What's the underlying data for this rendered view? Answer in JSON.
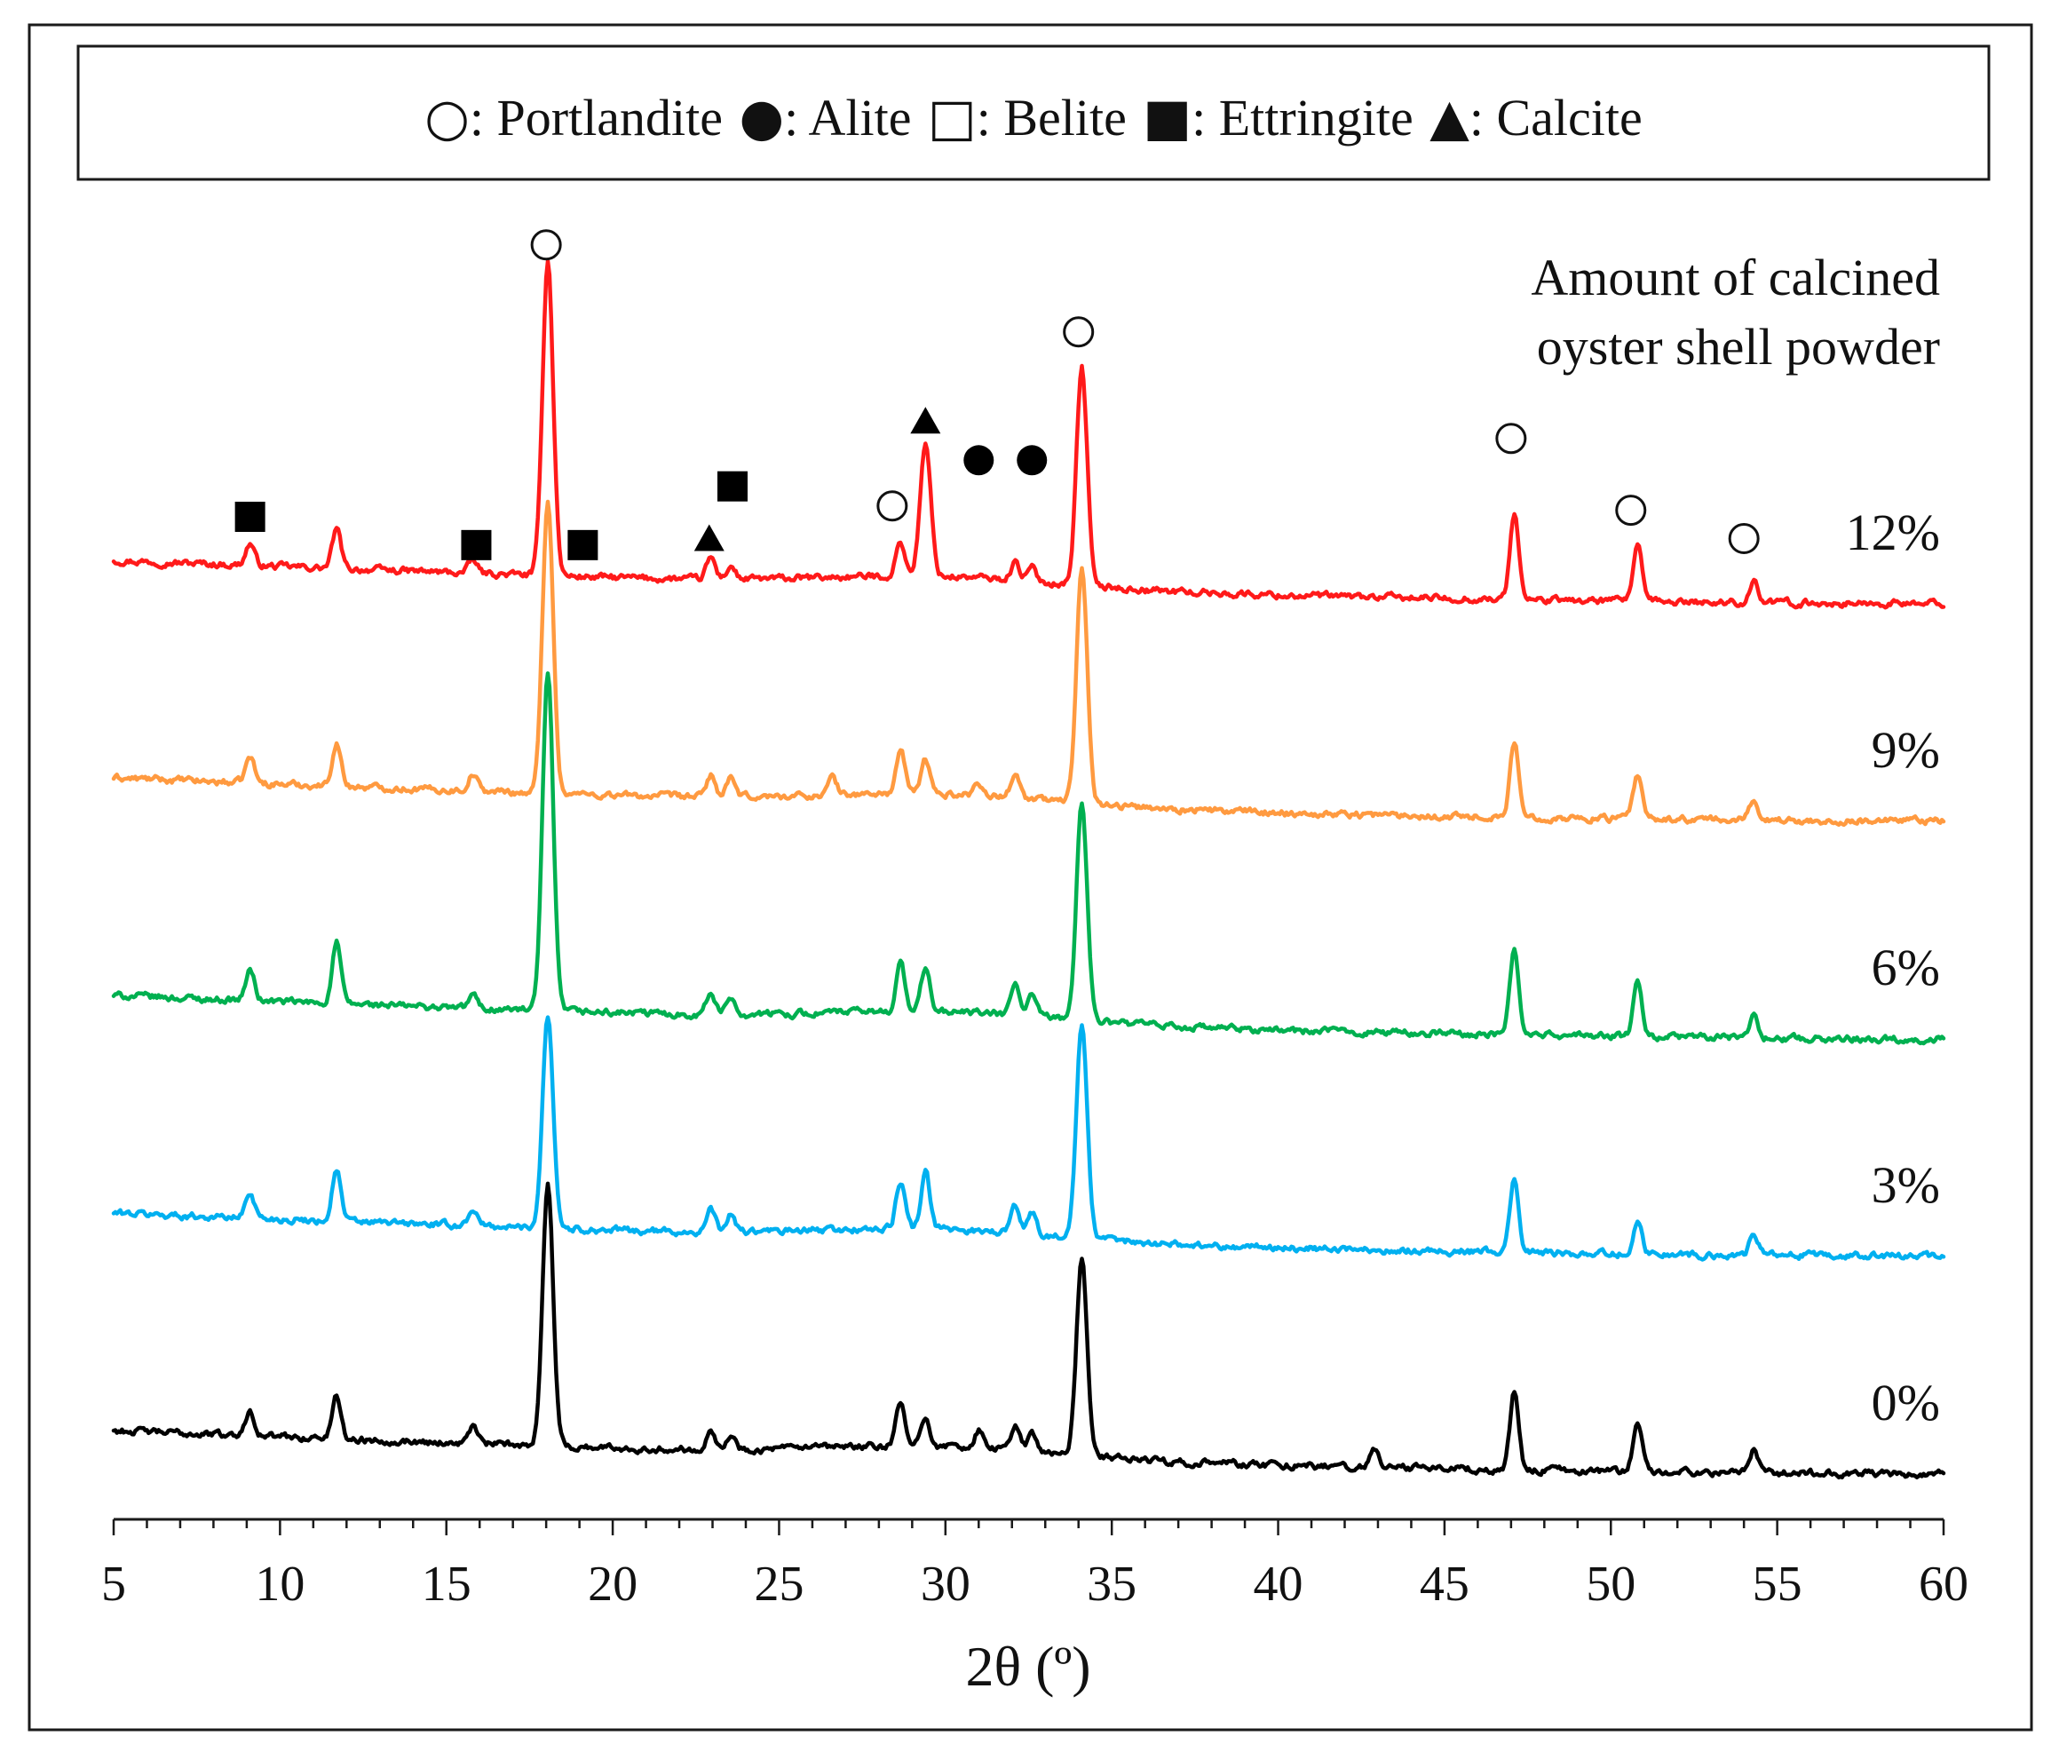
{
  "chart_data": {
    "type": "line",
    "title": "",
    "xlabel": "2θ (º)",
    "ylabel": "",
    "xlim": [
      5,
      60
    ],
    "x_ticks": [
      "5",
      "10",
      "15",
      "20",
      "25",
      "30",
      "35",
      "40",
      "45",
      "50",
      "55",
      "60"
    ],
    "grid": false,
    "legend": {
      "placement": "top",
      "entries": [
        {
          "symbol": "open-circle",
          "text": ": Portlandite"
        },
        {
          "symbol": "filled-circle",
          "text": ": Alite"
        },
        {
          "symbol": "open-square",
          "text": ": Belite"
        },
        {
          "symbol": "filled-square",
          "text": ": Ettringite"
        },
        {
          "symbol": "filled-triangle",
          "text": ": Calcite"
        }
      ]
    },
    "series_title_lines": [
      "Amount of calcined",
      "oyster shell powder"
    ],
    "series": [
      {
        "name": "12%",
        "color": "#ff1a1a",
        "offset": 4,
        "baseline_start": 0.2,
        "baseline_end": 0.0,
        "peaks": [
          [
            9.1,
            0.1
          ],
          [
            11.7,
            0.18
          ],
          [
            15.8,
            0.06
          ],
          [
            18.05,
            1.45
          ],
          [
            22.95,
            0.1
          ],
          [
            23.55,
            0.06
          ],
          [
            28.65,
            0.16
          ],
          [
            29.4,
            0.6
          ],
          [
            32.1,
            0.08
          ],
          [
            32.6,
            0.06
          ],
          [
            34.1,
            1.0
          ],
          [
            47.1,
            0.4
          ],
          [
            50.8,
            0.26
          ],
          [
            54.3,
            0.1
          ]
        ]
      },
      {
        "name": "9%",
        "color": "#ff9a40",
        "offset": 3,
        "baseline_start": 0.2,
        "baseline_end": 0.0,
        "peaks": [
          [
            9.1,
            0.12
          ],
          [
            11.7,
            0.2
          ],
          [
            15.8,
            0.08
          ],
          [
            18.05,
            1.35
          ],
          [
            22.95,
            0.1
          ],
          [
            23.55,
            0.08
          ],
          [
            26.6,
            0.08
          ],
          [
            28.65,
            0.2
          ],
          [
            29.4,
            0.16
          ],
          [
            31.0,
            0.06
          ],
          [
            32.1,
            0.12
          ],
          [
            34.1,
            1.1
          ],
          [
            47.1,
            0.34
          ],
          [
            50.8,
            0.2
          ],
          [
            54.3,
            0.1
          ]
        ]
      },
      {
        "name": "6%",
        "color": "#00b050",
        "offset": 2,
        "baseline_start": 0.2,
        "baseline_end": 0.0,
        "peaks": [
          [
            9.1,
            0.14
          ],
          [
            11.7,
            0.28
          ],
          [
            15.8,
            0.06
          ],
          [
            18.05,
            1.55
          ],
          [
            22.95,
            0.1
          ],
          [
            23.55,
            0.08
          ],
          [
            28.65,
            0.22
          ],
          [
            29.4,
            0.2
          ],
          [
            32.1,
            0.14
          ],
          [
            32.6,
            0.1
          ],
          [
            34.1,
            1.0
          ],
          [
            47.1,
            0.4
          ],
          [
            50.8,
            0.24
          ],
          [
            54.3,
            0.1
          ]
        ]
      },
      {
        "name": "3%",
        "color": "#00b0f0",
        "offset": 1,
        "baseline_start": 0.2,
        "baseline_end": 0.0,
        "peaks": [
          [
            9.1,
            0.12
          ],
          [
            11.7,
            0.24
          ],
          [
            15.8,
            0.08
          ],
          [
            18.05,
            0.98
          ],
          [
            22.95,
            0.1
          ],
          [
            23.55,
            0.08
          ],
          [
            28.65,
            0.22
          ],
          [
            29.4,
            0.26
          ],
          [
            32.1,
            0.12
          ],
          [
            32.6,
            0.1
          ],
          [
            34.1,
            0.98
          ],
          [
            47.1,
            0.34
          ],
          [
            50.8,
            0.16
          ],
          [
            54.3,
            0.1
          ]
        ]
      },
      {
        "name": "0%",
        "color": "#000000",
        "offset": 0,
        "baseline_start": 0.2,
        "baseline_end": 0.0,
        "peaks": [
          [
            9.1,
            0.12
          ],
          [
            11.7,
            0.2
          ],
          [
            15.8,
            0.08
          ],
          [
            18.05,
            1.2
          ],
          [
            22.95,
            0.1
          ],
          [
            23.55,
            0.06
          ],
          [
            28.65,
            0.2
          ],
          [
            29.4,
            0.14
          ],
          [
            31.0,
            0.08
          ],
          [
            32.1,
            0.12
          ],
          [
            32.6,
            0.08
          ],
          [
            34.1,
            0.9
          ],
          [
            42.9,
            0.08
          ],
          [
            47.1,
            0.36
          ],
          [
            50.8,
            0.24
          ],
          [
            54.3,
            0.1
          ]
        ]
      }
    ],
    "annotations": [
      {
        "symbol": "open-circle",
        "x": 18.0,
        "y": 5.65
      },
      {
        "symbol": "open-circle",
        "x": 34.0,
        "y": 5.25
      },
      {
        "symbol": "open-circle",
        "x": 28.4,
        "y": 4.45
      },
      {
        "symbol": "open-circle",
        "x": 47.0,
        "y": 4.76
      },
      {
        "symbol": "open-circle",
        "x": 50.6,
        "y": 4.43
      },
      {
        "symbol": "open-circle",
        "x": 54.0,
        "y": 4.3
      },
      {
        "symbol": "filled-circle",
        "x": 31.0,
        "y": 4.66
      },
      {
        "symbol": "filled-circle",
        "x": 32.6,
        "y": 4.66
      },
      {
        "symbol": "filled-triangle",
        "x": 29.4,
        "y": 4.84
      },
      {
        "symbol": "filled-triangle",
        "x": 22.9,
        "y": 4.3
      },
      {
        "symbol": "filled-square",
        "x": 9.1,
        "y": 4.4
      },
      {
        "symbol": "filled-square",
        "x": 15.9,
        "y": 4.27
      },
      {
        "symbol": "filled-square",
        "x": 19.1,
        "y": 4.27
      },
      {
        "symbol": "filled-square",
        "x": 23.6,
        "y": 4.54
      }
    ]
  }
}
